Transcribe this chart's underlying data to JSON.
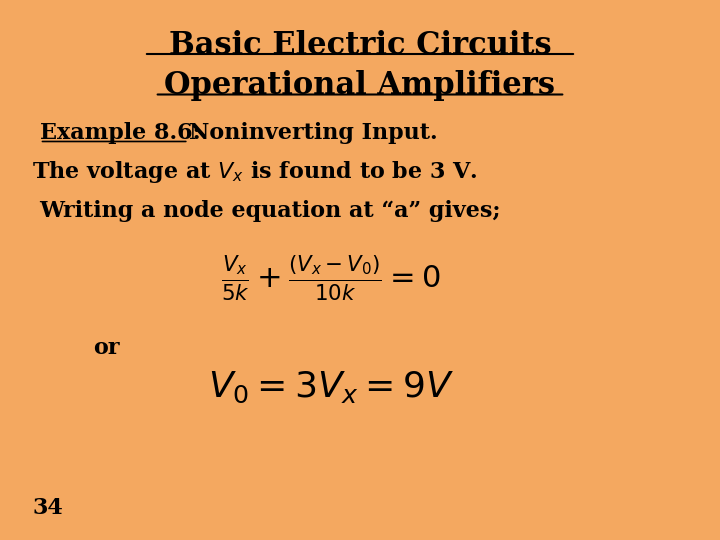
{
  "bg_color": "#F4A860",
  "title1": "Basic Electric Circuits",
  "title2": "Operational Amplifiers",
  "example_label": "Example 8.6:  ",
  "example_text": "Noninverting Input.",
  "line1": "The voltage at $V_x$ is found to be 3 V.",
  "line2": "Writing a node equation at “a” gives;",
  "eq1": "$\\frac{V_x}{5k}+\\frac{(V_x-V_0)}{10k}=0$",
  "eq2": "$V_0=3V_x=9V$",
  "or_text": "or",
  "page_num": "34",
  "title_fontsize": 22,
  "subtitle_fontsize": 22,
  "body_fontsize": 16,
  "eq_fontsize": 22,
  "eq2_fontsize": 26
}
